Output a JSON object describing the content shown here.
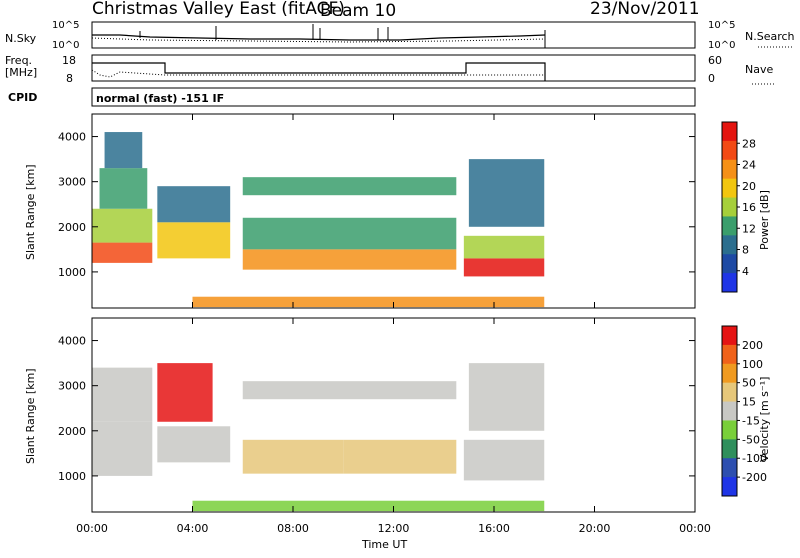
{
  "header": {
    "station": "Christmas Valley East (fitACF)",
    "beam": "Beam 10",
    "date": "23/Nov/2011"
  },
  "top_panels": {
    "nsky_label": "N.Sky",
    "nsky_ticks": [
      "10^5",
      "10^0"
    ],
    "nsearch_label": "N.Search",
    "nsearch_ticks": [
      "10^5",
      "10^0"
    ],
    "freq_label_1": "Freq.",
    "freq_label_2": "[MHz]",
    "freq_ticks": [
      "18",
      "8"
    ],
    "nave_label": "Nave",
    "nave_ticks": [
      "60",
      "0"
    ],
    "cpid_label": "CPID",
    "cpid_text": "normal (fast) -151 IF"
  },
  "x_axis": {
    "label": "Time UT",
    "ticks": [
      "00:00",
      "04:00",
      "08:00",
      "12:00",
      "16:00",
      "20:00",
      "00:00"
    ],
    "range_hours": [
      0,
      24
    ],
    "data_end_hours": 18
  },
  "colors": {
    "power_scale": [
      "#1f35e6",
      "#1e4aa4",
      "#2b6e8e",
      "#3a9e6c",
      "#a6cf3a",
      "#f2c60f",
      "#f59017",
      "#f24a15",
      "#e4140f"
    ],
    "velocity_scale": [
      "#1f35e6",
      "#2d4fb0",
      "#2f8f5c",
      "#79cf3a",
      "#c8c8c4",
      "#e6c77a",
      "#f09a20",
      "#f0621a",
      "#e51414"
    ]
  },
  "chart_data": [
    {
      "type": "heatmap",
      "name": "power-panel",
      "ylabel": "Slant Range [km]",
      "yticks": [
        "1000",
        "2000",
        "3000",
        "4000"
      ],
      "ylim": [
        200,
        4500
      ],
      "colorbar_label": "Power [dB]",
      "colorbar_ticks": [
        "28",
        "24",
        "20",
        "16",
        "12",
        "8",
        "4"
      ],
      "colorbar_range": [
        0,
        30
      ],
      "regions": [
        {
          "t": [
            0.0,
            2.4
          ],
          "r": [
            1200,
            1650
          ],
          "v": 26
        },
        {
          "t": [
            0.0,
            2.4
          ],
          "r": [
            1650,
            2400
          ],
          "v": 14
        },
        {
          "t": [
            0.3,
            2.2
          ],
          "r": [
            2400,
            3300
          ],
          "v": 12
        },
        {
          "t": [
            0.5,
            2.0
          ],
          "r": [
            3300,
            4100
          ],
          "v": 9
        },
        {
          "t": [
            2.6,
            5.5
          ],
          "r": [
            1300,
            2100
          ],
          "v": 18
        },
        {
          "t": [
            2.6,
            5.5
          ],
          "r": [
            2100,
            2900
          ],
          "v": 8
        },
        {
          "t": [
            6.0,
            14.5
          ],
          "r": [
            1050,
            1500
          ],
          "v": 22
        },
        {
          "t": [
            6.0,
            14.5
          ],
          "r": [
            1500,
            2200
          ],
          "v": 13
        },
        {
          "t": [
            6.0,
            14.5
          ],
          "r": [
            2700,
            3100
          ],
          "v": 10
        },
        {
          "t": [
            4.0,
            18.0
          ],
          "r": [
            220,
            450
          ],
          "v": 20
        },
        {
          "t": [
            14.8,
            18.0
          ],
          "r": [
            900,
            1300
          ],
          "v": 27
        },
        {
          "t": [
            14.8,
            18.0
          ],
          "r": [
            1300,
            1800
          ],
          "v": 15
        },
        {
          "t": [
            15.0,
            18.0
          ],
          "r": [
            2000,
            3500
          ],
          "v": 8
        }
      ]
    },
    {
      "type": "heatmap",
      "name": "velocity-panel",
      "ylabel": "Slant Range [km]",
      "yticks": [
        "1000",
        "2000",
        "3000",
        "4000"
      ],
      "ylim": [
        200,
        4500
      ],
      "colorbar_label": "Velocity [m s⁻¹]",
      "colorbar_ticks": [
        "200",
        "100",
        "50",
        "15",
        "-15",
        "-50",
        "-100",
        "-200"
      ],
      "colorbar_range": [
        -250,
        250
      ],
      "regions": [
        {
          "t": [
            0.0,
            2.4
          ],
          "r": [
            1000,
            2200
          ],
          "v": 0
        },
        {
          "t": [
            0.0,
            2.4
          ],
          "r": [
            2200,
            3400
          ],
          "v": -20
        },
        {
          "t": [
            2.6,
            4.8
          ],
          "r": [
            2200,
            3500
          ],
          "v": 210
        },
        {
          "t": [
            2.6,
            5.5
          ],
          "r": [
            1300,
            2100
          ],
          "v": 0
        },
        {
          "t": [
            6.0,
            10.0
          ],
          "r": [
            1050,
            1800
          ],
          "v": 80
        },
        {
          "t": [
            10.0,
            14.5
          ],
          "r": [
            1050,
            1800
          ],
          "v": 30
        },
        {
          "t": [
            6.0,
            14.5
          ],
          "r": [
            2700,
            3100
          ],
          "v": 10
        },
        {
          "t": [
            4.0,
            18.0
          ],
          "r": [
            220,
            450
          ],
          "v": -40
        },
        {
          "t": [
            14.8,
            18.0
          ],
          "r": [
            900,
            1800
          ],
          "v": 0
        },
        {
          "t": [
            15.0,
            18.0
          ],
          "r": [
            2000,
            3500
          ],
          "v": 5
        }
      ]
    }
  ]
}
